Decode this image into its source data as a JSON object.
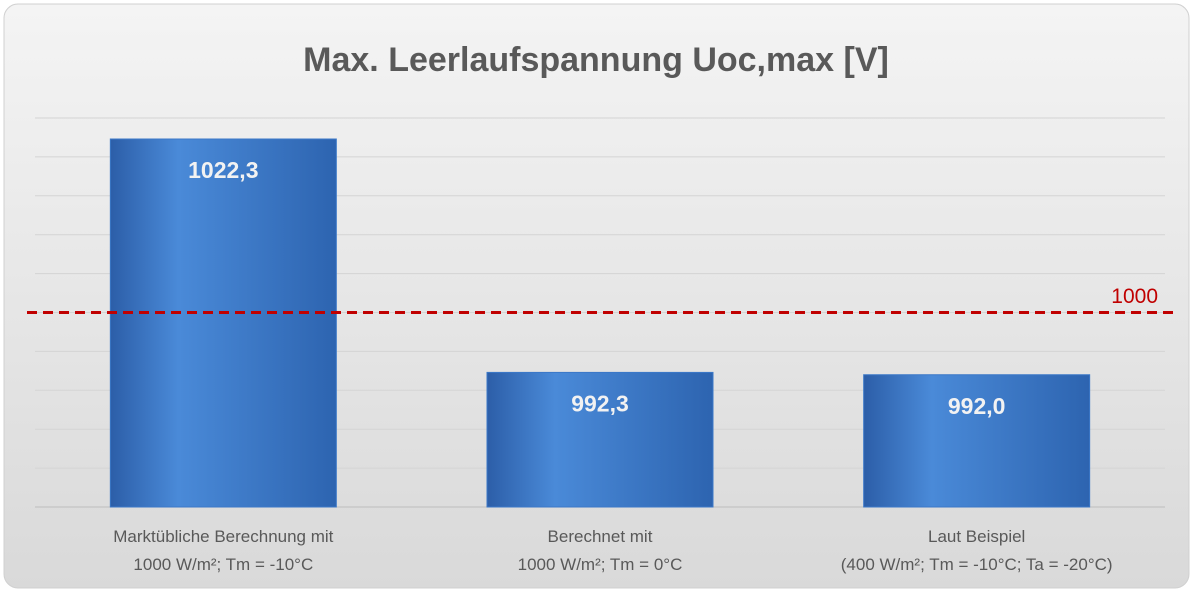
{
  "chart_data": {
    "type": "bar",
    "title": "Max. Leerlaufspannung Uoc,max [V]",
    "categories": [
      [
        "Marktübliche Berechnung mit",
        "1000 W/m²; Tm = -10°C"
      ],
      [
        "Berechnet mit",
        "1000 W/m²; Tm = 0°C"
      ],
      [
        "Laut Beispiel",
        "(400 W/m²; Tm = -10°C; Ta = -20°C)"
      ]
    ],
    "values": [
      1022.3,
      992.3,
      992.0
    ],
    "value_labels": [
      "1022,3",
      "992,3",
      "992,0"
    ],
    "color": "#3b78c8",
    "ylim": [
      975,
      1025
    ],
    "yticks": [
      975,
      980,
      985,
      990,
      995,
      1000,
      1005,
      1010,
      1015,
      1020,
      1025
    ],
    "grid": true,
    "reference_line": {
      "value": 1000,
      "color": "#c00000"
    }
  }
}
